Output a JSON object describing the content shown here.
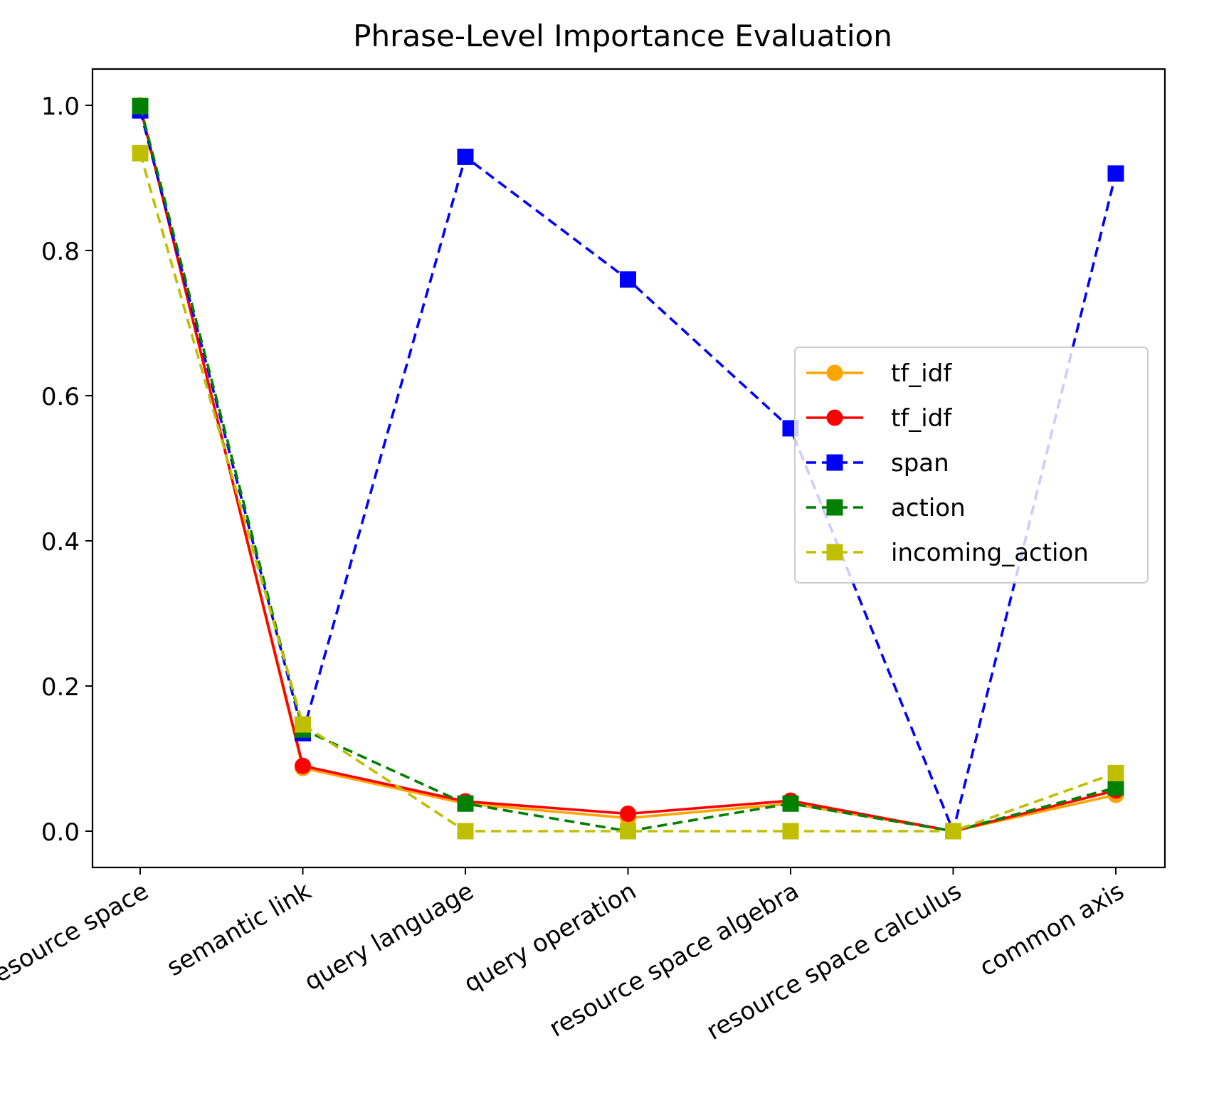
{
  "chart_data": {
    "type": "line",
    "title": "Phrase-Level Importance Evaluation",
    "xlabel": "",
    "ylabel": "",
    "categories": [
      "resource space",
      "semantic link",
      "query language",
      "query operation",
      "resource space algebra",
      "resource space calculus",
      "common axis"
    ],
    "ylim": [
      -0.05,
      1.05
    ],
    "yticks": [
      "0.0",
      "0.2",
      "0.4",
      "0.6",
      "0.8",
      "1.0"
    ],
    "grid": false,
    "legend_position": "center-right",
    "series": [
      {
        "name": "tf_idf",
        "color": "#ffa500",
        "marker": "circle",
        "line": "solid",
        "values": [
          1.0,
          0.087,
          0.038,
          0.018,
          0.038,
          0.0,
          0.05
        ]
      },
      {
        "name": "tf_idf",
        "color": "#ff0000",
        "marker": "circle",
        "line": "solid",
        "values": [
          0.998,
          0.09,
          0.041,
          0.024,
          0.042,
          0.0,
          0.056
        ]
      },
      {
        "name": "span",
        "color": "#0000ff",
        "marker": "square",
        "line": "dashed",
        "values": [
          0.993,
          0.135,
          0.929,
          0.76,
          0.555,
          0.0,
          0.906
        ]
      },
      {
        "name": "action",
        "color": "#008000",
        "marker": "square",
        "line": "dashed",
        "values": [
          0.999,
          0.14,
          0.038,
          0.0,
          0.038,
          0.0,
          0.06
        ]
      },
      {
        "name": "incoming_action",
        "color": "#bfbf00",
        "marker": "square",
        "line": "dashed",
        "values": [
          0.934,
          0.147,
          0.0,
          0.0,
          0.0,
          0.0,
          0.08
        ]
      }
    ]
  }
}
